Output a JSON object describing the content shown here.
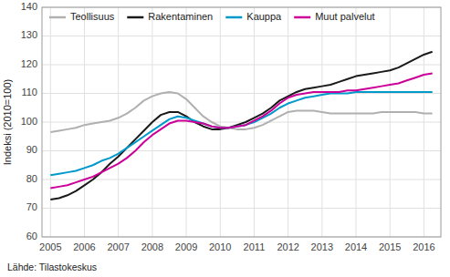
{
  "chart_data": {
    "type": "line",
    "ylabel": "Indeksi (2010=100)",
    "source": "Lähde: Tilastokeskus",
    "x": [
      2005.0,
      2005.25,
      2005.5,
      2005.75,
      2006.0,
      2006.25,
      2006.5,
      2006.75,
      2007.0,
      2007.25,
      2007.5,
      2007.75,
      2008.0,
      2008.25,
      2008.5,
      2008.75,
      2009.0,
      2009.25,
      2009.5,
      2009.75,
      2010.0,
      2010.25,
      2010.5,
      2010.75,
      2011.0,
      2011.25,
      2011.5,
      2011.75,
      2012.0,
      2012.25,
      2012.5,
      2012.75,
      2013.0,
      2013.25,
      2013.5,
      2013.75,
      2014.0,
      2014.25,
      2014.5,
      2014.75,
      2015.0,
      2015.25,
      2015.5,
      2015.75,
      2016.0,
      2016.25
    ],
    "series": [
      {
        "name": "Teollisuus",
        "color": "#b0b0b0",
        "values": [
          96.5,
          97.0,
          97.5,
          98.0,
          99.0,
          99.5,
          100.0,
          100.5,
          101.5,
          103.0,
          105.0,
          107.5,
          109.0,
          110.0,
          110.5,
          110.0,
          108.0,
          105.0,
          102.0,
          100.0,
          98.5,
          98.0,
          97.5,
          97.5,
          98.0,
          99.0,
          100.5,
          102.0,
          103.5,
          104.0,
          104.0,
          104.0,
          103.5,
          103.0,
          103.0,
          103.0,
          103.0,
          103.0,
          103.0,
          103.5,
          103.5,
          103.5,
          103.5,
          103.5,
          103.0,
          103.0
        ]
      },
      {
        "name": "Rakentaminen",
        "color": "#1a1a1a",
        "values": [
          73.0,
          73.5,
          74.5,
          76.0,
          78.0,
          80.0,
          82.5,
          85.5,
          88.0,
          91.0,
          94.0,
          97.0,
          100.0,
          102.5,
          103.5,
          103.5,
          102.0,
          100.0,
          98.5,
          97.5,
          97.5,
          98.0,
          99.0,
          100.0,
          101.5,
          103.0,
          105.0,
          107.5,
          109.0,
          110.5,
          111.5,
          112.0,
          112.5,
          113.0,
          114.0,
          115.0,
          116.0,
          116.5,
          117.0,
          117.5,
          118.0,
          119.0,
          120.5,
          122.0,
          123.5,
          124.5
        ]
      },
      {
        "name": "Kauppa",
        "color": "#0099cc",
        "values": [
          81.5,
          82.0,
          82.5,
          83.0,
          84.0,
          85.0,
          86.5,
          87.5,
          89.0,
          91.0,
          93.0,
          95.0,
          97.0,
          99.0,
          101.0,
          102.0,
          101.5,
          100.5,
          99.5,
          98.5,
          98.0,
          98.0,
          98.5,
          99.0,
          100.0,
          101.5,
          103.0,
          105.0,
          106.5,
          107.5,
          108.5,
          109.0,
          109.5,
          110.0,
          110.0,
          110.0,
          110.5,
          110.5,
          110.5,
          110.5,
          110.5,
          110.5,
          110.5,
          110.5,
          110.5,
          110.5
        ]
      },
      {
        "name": "Muut palvelut",
        "color": "#cc0099",
        "values": [
          77.0,
          77.5,
          78.0,
          79.0,
          80.0,
          81.0,
          82.5,
          84.0,
          85.5,
          87.5,
          90.0,
          93.0,
          95.5,
          97.5,
          99.5,
          100.5,
          100.5,
          100.0,
          99.5,
          98.5,
          98.0,
          98.0,
          98.5,
          99.0,
          100.5,
          102.0,
          104.0,
          106.5,
          108.5,
          109.5,
          110.0,
          110.5,
          110.5,
          110.5,
          110.5,
          111.0,
          111.0,
          111.5,
          112.0,
          112.5,
          113.0,
          113.5,
          114.5,
          115.5,
          116.5,
          117.0
        ]
      }
    ],
    "xlim": [
      2004.75,
      2016.5
    ],
    "xticks": [
      2005,
      2006,
      2007,
      2008,
      2009,
      2010,
      2011,
      2012,
      2013,
      2014,
      2015,
      2016
    ],
    "ylim": [
      60,
      140
    ],
    "yticks": [
      60,
      70,
      80,
      90,
      100,
      110,
      120,
      130,
      140
    ],
    "grid": true,
    "legend": "upper left"
  }
}
